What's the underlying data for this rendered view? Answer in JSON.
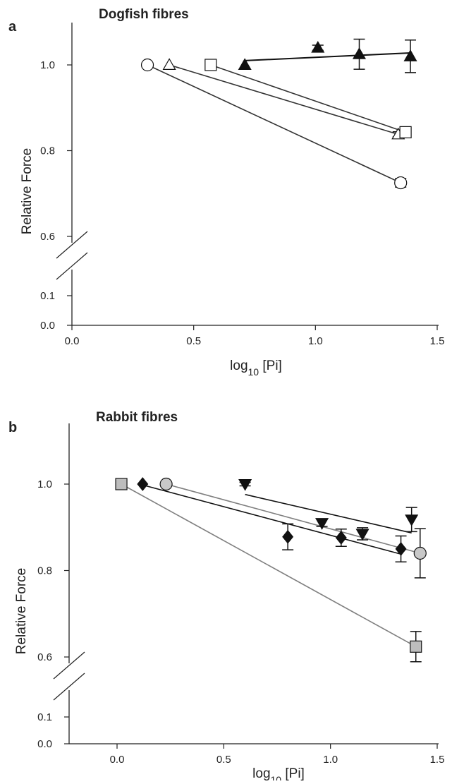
{
  "chart_data": [
    {
      "type": "scatter",
      "panel_label": "a",
      "title": "Dogfish fibres",
      "xlabel": "log",
      "xlabel_sub": "10",
      "xlabel_tail": " [Pi]",
      "ylabel": "Relative Force",
      "xlim": [
        0.0,
        1.5
      ],
      "x_ticks": [
        0.0,
        0.5,
        1.0,
        1.5
      ],
      "x_tick_labels": [
        "0.0",
        "0.5",
        "1.0",
        "1.5"
      ],
      "ylim_upper": [
        0.6,
        1.0
      ],
      "ylim_lower": [
        0.0,
        0.1
      ],
      "y_ticks": [
        0.0,
        0.1,
        0.6,
        0.8,
        1.0
      ],
      "y_tick_labels": [
        "0.0",
        "0.1",
        "0.6",
        "0.8",
        "1.0"
      ],
      "axis_break": true,
      "grid": false,
      "legend": "none",
      "series": [
        {
          "marker": "circle-open",
          "fill": "#ffffff",
          "line_color": "#333333",
          "points": [
            {
              "x": 0.31,
              "y": 1.0
            },
            {
              "x": 1.35,
              "y": 0.725,
              "err": 0.01
            }
          ],
          "fit": [
            [
              0.31,
              1.0
            ],
            [
              1.35,
              0.725
            ]
          ]
        },
        {
          "marker": "triangle-up-open",
          "fill": "#ffffff",
          "line_color": "#333333",
          "points": [
            {
              "x": 0.4,
              "y": 1.0
            },
            {
              "x": 1.34,
              "y": 0.838,
              "err": 0.006
            }
          ],
          "fit": [
            [
              0.4,
              1.0
            ],
            [
              1.34,
              0.838
            ]
          ]
        },
        {
          "marker": "square-open",
          "fill": "#ffffff",
          "line_color": "#333333",
          "points": [
            {
              "x": 0.57,
              "y": 1.0
            },
            {
              "x": 1.37,
              "y": 0.843,
              "err": 0.012
            }
          ],
          "fit": [
            [
              0.57,
              1.0
            ],
            [
              1.37,
              0.843
            ]
          ]
        },
        {
          "marker": "triangle-up-filled",
          "fill": "#111111",
          "line_color": "#111111",
          "points": [
            {
              "x": 0.71,
              "y": 1.0
            },
            {
              "x": 1.01,
              "y": 1.04,
              "err": 0.006
            },
            {
              "x": 1.18,
              "y": 1.025,
              "err": 0.035
            },
            {
              "x": 1.39,
              "y": 1.02,
              "err": 0.038
            }
          ],
          "fit": [
            [
              0.71,
              1.01
            ],
            [
              1.39,
              1.028
            ]
          ]
        }
      ]
    },
    {
      "type": "scatter",
      "panel_label": "b",
      "title": "Rabbit fibres",
      "xlabel": "log",
      "xlabel_sub": "10",
      "xlabel_tail": " [Pi]",
      "ylabel": "Relative Force",
      "xlim": [
        -0.2,
        1.5
      ],
      "x_ticks": [
        0.0,
        0.5,
        1.0,
        1.5
      ],
      "x_tick_labels": [
        "0.0",
        "0.5",
        "1.0",
        "1.5"
      ],
      "ylim_upper": [
        0.6,
        1.0
      ],
      "ylim_lower": [
        0.0,
        0.1
      ],
      "y_ticks": [
        0.0,
        0.1,
        0.6,
        0.8,
        1.0
      ],
      "y_tick_labels": [
        "0.0",
        "0.1",
        "0.6",
        "0.8",
        "1.0"
      ],
      "axis_break": true,
      "grid": false,
      "legend": "none",
      "series": [
        {
          "marker": "square-filled",
          "fill": "#bdbdbd",
          "line_color": "#7f7f7f",
          "points": [
            {
              "x": 0.02,
              "y": 1.0
            },
            {
              "x": 1.4,
              "y": 0.624,
              "err": 0.035
            }
          ],
          "fit": [
            [
              0.02,
              1.0
            ],
            [
              1.4,
              0.624
            ]
          ]
        },
        {
          "marker": "circle-filled",
          "fill": "#c8c8c8",
          "line_color": "#7f7f7f",
          "points": [
            {
              "x": 0.23,
              "y": 1.0
            },
            {
              "x": 1.42,
              "y": 0.84,
              "err": 0.057
            }
          ],
          "fit": [
            [
              0.23,
              1.0
            ],
            [
              1.42,
              0.84
            ]
          ]
        },
        {
          "marker": "diamond-filled",
          "fill": "#111111",
          "line_color": "#111111",
          "points": [
            {
              "x": 0.12,
              "y": 1.0
            },
            {
              "x": 0.8,
              "y": 0.878,
              "err": 0.03
            },
            {
              "x": 1.05,
              "y": 0.876,
              "err": 0.02
            },
            {
              "x": 1.33,
              "y": 0.85,
              "err": 0.03
            }
          ],
          "fit": [
            [
              0.12,
              0.998
            ],
            [
              1.33,
              0.838
            ]
          ]
        },
        {
          "marker": "triangle-down-filled",
          "fill": "#111111",
          "line_color": "#111111",
          "points": [
            {
              "x": 0.6,
              "y": 1.0,
              "err": 0.004
            },
            {
              "x": 0.96,
              "y": 0.91,
              "err": 0.008
            },
            {
              "x": 1.15,
              "y": 0.885,
              "err": 0.014
            },
            {
              "x": 1.38,
              "y": 0.918,
              "err": 0.028
            }
          ],
          "fit": [
            [
              0.6,
              0.976
            ],
            [
              1.38,
              0.887
            ]
          ]
        }
      ]
    }
  ]
}
